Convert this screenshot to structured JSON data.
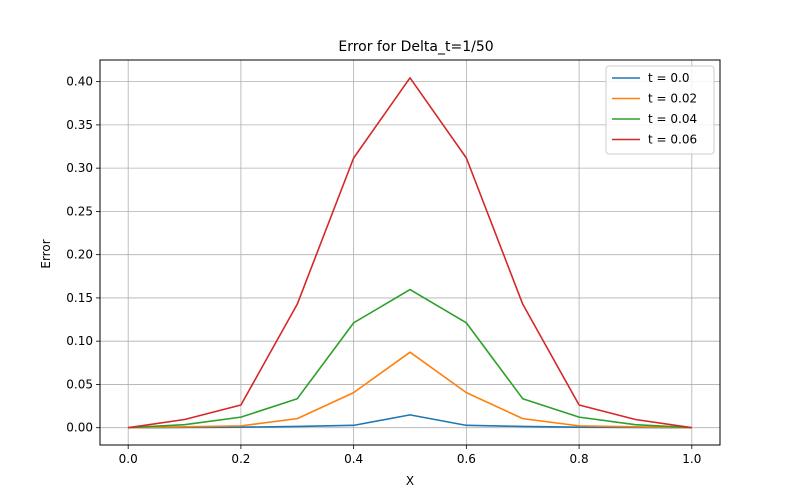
{
  "chart_data": {
    "type": "line",
    "title": "Error for Delta_t=1/50",
    "xlabel": "X",
    "ylabel": "Error",
    "xlim": [
      -0.05,
      1.05
    ],
    "ylim": [
      -0.02,
      0.425
    ],
    "xticks": [
      0.0,
      0.2,
      0.4,
      0.6,
      0.8,
      1.0
    ],
    "xtick_labels": [
      "0.0",
      "0.2",
      "0.4",
      "0.6",
      "0.8",
      "1.0"
    ],
    "yticks": [
      0.0,
      0.05,
      0.1,
      0.15,
      0.2,
      0.25,
      0.3,
      0.35,
      0.4
    ],
    "ytick_labels": [
      "0.00",
      "0.05",
      "0.10",
      "0.15",
      "0.20",
      "0.25",
      "0.30",
      "0.35",
      "0.40"
    ],
    "grid": true,
    "legend_position": "top-right",
    "x": [
      0.0,
      0.1,
      0.2,
      0.3,
      0.4,
      0.5,
      0.6,
      0.7,
      0.8,
      0.9,
      1.0
    ],
    "series": [
      {
        "name": "t = 0.0",
        "color": "#1f77b4",
        "values": [
          0.0,
          0.0003,
          0.0006,
          0.0015,
          0.0027,
          0.0148,
          0.0027,
          0.0015,
          0.0006,
          0.0003,
          0.0
        ]
      },
      {
        "name": "t = 0.02",
        "color": "#ff7f0e",
        "values": [
          0.0,
          0.001,
          0.0021,
          0.0105,
          0.0405,
          0.0873,
          0.0405,
          0.0105,
          0.0021,
          0.001,
          0.0
        ]
      },
      {
        "name": "t = 0.04",
        "color": "#2ca02c",
        "values": [
          0.0,
          0.0035,
          0.0122,
          0.0335,
          0.1212,
          0.1596,
          0.1212,
          0.0335,
          0.0122,
          0.0035,
          0.0
        ]
      },
      {
        "name": "t = 0.06",
        "color": "#d62728",
        "values": [
          0.0,
          0.0095,
          0.0262,
          0.1428,
          0.3117,
          0.4044,
          0.3117,
          0.1428,
          0.0262,
          0.0095,
          0.0
        ]
      }
    ]
  }
}
